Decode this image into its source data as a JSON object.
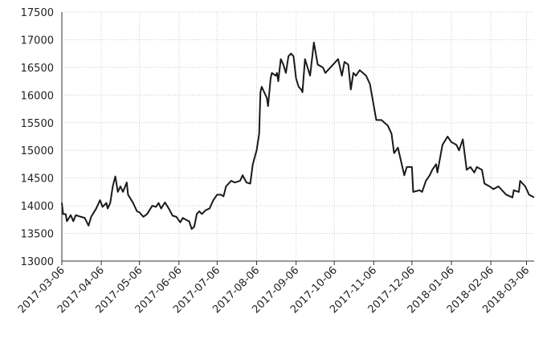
{
  "chart_data": {
    "type": "line",
    "color": "#1a1a1a",
    "grid": true,
    "x": [
      "2017-03-06",
      "2017-03-07",
      "2017-03-09",
      "2017-03-10",
      "2017-03-13",
      "2017-03-15",
      "2017-03-17",
      "2017-03-21",
      "2017-03-24",
      "2017-03-27",
      "2017-03-29",
      "2017-04-02",
      "2017-04-05",
      "2017-04-07",
      "2017-04-10",
      "2017-04-11",
      "2017-04-13",
      "2017-04-15",
      "2017-04-17",
      "2017-04-19",
      "2017-04-21",
      "2017-04-23",
      "2017-04-26",
      "2017-04-27",
      "2017-05-01",
      "2017-05-04",
      "2017-05-06",
      "2017-05-09",
      "2017-05-12",
      "2017-05-16",
      "2017-05-19",
      "2017-05-21",
      "2017-05-23",
      "2017-05-26",
      "2017-05-29",
      "2017-06-01",
      "2017-06-04",
      "2017-06-07",
      "2017-06-09",
      "2017-06-12",
      "2017-06-14",
      "2017-06-16",
      "2017-06-18",
      "2017-06-20",
      "2017-06-22",
      "2017-06-24",
      "2017-06-27",
      "2017-06-30",
      "2017-07-03",
      "2017-07-06",
      "2017-07-09",
      "2017-07-11",
      "2017-07-13",
      "2017-07-17",
      "2017-07-20",
      "2017-07-24",
      "2017-07-26",
      "2017-07-29",
      "2017-08-01",
      "2017-08-03",
      "2017-08-06",
      "2017-08-08",
      "2017-08-09",
      "2017-08-10",
      "2017-08-12",
      "2017-08-14",
      "2017-08-15",
      "2017-08-17",
      "2017-08-18",
      "2017-08-21",
      "2017-08-22",
      "2017-08-23",
      "2017-08-25",
      "2017-08-27",
      "2017-08-29",
      "2017-08-31",
      "2017-09-02",
      "2017-09-04",
      "2017-09-06",
      "2017-09-08",
      "2017-09-10",
      "2017-09-11",
      "2017-09-13",
      "2017-09-17",
      "2017-09-20",
      "2017-09-23",
      "2017-09-27",
      "2017-09-29",
      "2017-10-09",
      "2017-10-12",
      "2017-10-14",
      "2017-10-17",
      "2017-10-19",
      "2017-10-21",
      "2017-10-23",
      "2017-10-26",
      "2017-10-31",
      "2017-11-03",
      "2017-11-08",
      "2017-11-12",
      "2017-11-17",
      "2017-11-20",
      "2017-11-22",
      "2017-11-25",
      "2017-11-30",
      "2017-12-02",
      "2017-12-06",
      "2017-12-07",
      "2017-12-12",
      "2017-12-14",
      "2017-12-17",
      "2017-12-20",
      "2017-12-22",
      "2017-12-25",
      "2017-12-26",
      "2017-12-30",
      "2018-01-03",
      "2018-01-06",
      "2018-01-10",
      "2018-01-12",
      "2018-01-15",
      "2018-01-18",
      "2018-01-21",
      "2018-01-24",
      "2018-01-26",
      "2018-01-30",
      "2018-02-01",
      "2018-02-05",
      "2018-02-08",
      "2018-02-12",
      "2018-02-18",
      "2018-02-23",
      "2018-02-24",
      "2018-02-28",
      "2018-03-01",
      "2018-03-05",
      "2018-03-08",
      "2018-03-12"
    ],
    "values": [
      14050,
      13850,
      13850,
      13720,
      13830,
      13720,
      13830,
      13800,
      13780,
      13640,
      13800,
      13950,
      14100,
      13980,
      14050,
      13950,
      14050,
      14350,
      14530,
      14250,
      14350,
      14250,
      14420,
      14200,
      14050,
      13900,
      13880,
      13800,
      13850,
      14000,
      13980,
      14050,
      13950,
      14060,
      13950,
      13820,
      13800,
      13700,
      13780,
      13740,
      13720,
      13580,
      13620,
      13850,
      13900,
      13850,
      13920,
      13950,
      14100,
      14200,
      14200,
      14170,
      14350,
      14450,
      14420,
      14450,
      14550,
      14420,
      14400,
      14750,
      15000,
      15300,
      16050,
      16150,
      16050,
      15950,
      15800,
      16300,
      16400,
      16350,
      16400,
      16250,
      16650,
      16550,
      16400,
      16700,
      16750,
      16700,
      16300,
      16150,
      16100,
      16050,
      16650,
      16350,
      16950,
      16550,
      16500,
      16400,
      16650,
      16350,
      16600,
      16550,
      16100,
      16400,
      16350,
      16450,
      16350,
      16200,
      15550,
      15550,
      15450,
      15300,
      14950,
      15050,
      14550,
      14700,
      14700,
      14250,
      14280,
      14250,
      14450,
      14550,
      14650,
      14750,
      14600,
      15100,
      15250,
      15150,
      15100,
      15000,
      15200,
      14650,
      14700,
      14600,
      14700,
      14650,
      14400,
      14350,
      14300,
      14350,
      14200,
      14150,
      14280,
      14250,
      14450,
      14350,
      14200,
      14150
    ],
    "xlim": [
      "2017-03-06",
      "2018-03-12"
    ],
    "xticks": [
      "2017-03-06",
      "2017-04-06",
      "2017-05-06",
      "2017-06-06",
      "2017-07-06",
      "2017-08-06",
      "2017-09-06",
      "2017-10-06",
      "2017-11-06",
      "2017-12-06",
      "2018-01-06",
      "2018-02-06",
      "2018-03-06"
    ],
    "ylim": [
      13000,
      17500
    ],
    "yticks": [
      13000,
      13500,
      14000,
      14500,
      15000,
      15500,
      16000,
      16500,
      17000,
      17500
    ]
  }
}
